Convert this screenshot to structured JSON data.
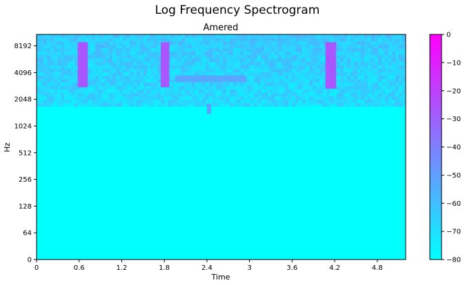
{
  "figure_title": "Log Frequency Spectrogram",
  "chart_data": {
    "type": "heatmap",
    "title": "Amered",
    "xlabel": "Time",
    "ylabel": "Hz",
    "x_scale": "linear",
    "y_scale": "symlog",
    "xlim": [
      0,
      5.2
    ],
    "ylim": [
      0,
      11025
    ],
    "xticks": [
      0,
      0.6,
      1.2,
      1.8,
      2.4,
      3,
      3.6,
      4.2,
      4.8
    ],
    "xtick_labels": [
      "0",
      "0.6",
      "1.2",
      "1.8",
      "2.4",
      "3",
      "3.6",
      "4.2",
      "4.8"
    ],
    "yticks": [
      0,
      64,
      128,
      256,
      512,
      1024,
      2048,
      4096,
      8192
    ],
    "ytick_labels": [
      "0",
      "64",
      "128",
      "256",
      "512",
      "1024",
      "2048",
      "4096",
      "8192"
    ],
    "colorbar": {
      "colormap": "cool",
      "range": [
        -80,
        0
      ],
      "ticks": [
        0,
        -10,
        -20,
        -30,
        -40,
        -50,
        -60,
        -70,
        -80
      ],
      "tick_labels": [
        "0",
        "−10",
        "−20",
        "−30",
        "−40",
        "−50",
        "−60",
        "−70",
        "−80"
      ],
      "low_color": "#00ffff",
      "high_color": "#ff00ff"
    },
    "background_db": -80,
    "noise_band": {
      "freq_min_hz": 1700,
      "freq_max_hz": 11025,
      "db": -63
    },
    "events": [
      {
        "t_start": 0.58,
        "t_end": 0.72,
        "f_min_hz": 2800,
        "f_max_hz": 9000,
        "peak_db": -20
      },
      {
        "t_start": 1.75,
        "t_end": 1.87,
        "f_min_hz": 2800,
        "f_max_hz": 9000,
        "peak_db": -20
      },
      {
        "t_start": 4.07,
        "t_end": 4.22,
        "f_min_hz": 2700,
        "f_max_hz": 9000,
        "peak_db": -20
      },
      {
        "t_start": 1.95,
        "t_end": 2.95,
        "f_min_hz": 3200,
        "f_max_hz": 3800,
        "peak_db": -50
      },
      {
        "t_start": 2.4,
        "t_end": 2.46,
        "f_min_hz": 1400,
        "f_max_hz": 1800,
        "peak_db": -45
      }
    ]
  }
}
